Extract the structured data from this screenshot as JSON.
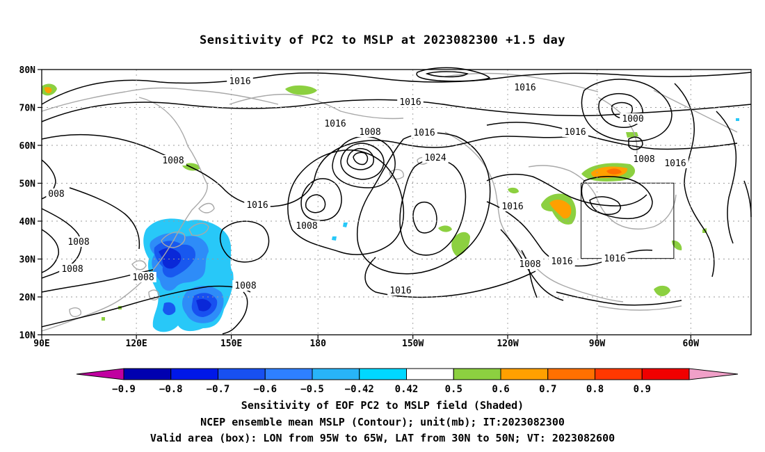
{
  "title": "Sensitivity of PC2 to MSLP at 2023082300 +1.5 day",
  "footer": {
    "line1": "Sensitivity of EOF PC2 to MSLP field (Shaded)",
    "line2": "NCEP ensemble mean MSLP (Contour); unit(mb); IT:2023082300",
    "line3": "Valid area (box): LON from 95W to 65W, LAT from 30N to 50N; VT: 2023082600"
  },
  "map": {
    "lat_labels": [
      "80N",
      "70N",
      "60N",
      "50N",
      "40N",
      "30N",
      "20N",
      "10N"
    ],
    "lon_labels": [
      "90E",
      "120E",
      "150E",
      "180",
      "150W",
      "120W",
      "90W",
      "60W"
    ],
    "contour_labels": [
      "1016",
      "1016",
      "1016",
      "1008",
      "1016",
      "1024",
      "1008",
      "1016",
      "1016",
      "008",
      "1008",
      "1008",
      "1008",
      "1008",
      "1016",
      "1016",
      "1008",
      "1016",
      "1016",
      "1008",
      "1016",
      "1000",
      "1008",
      "1016"
    ],
    "box": {
      "lon": [
        "95W",
        "65W"
      ],
      "lat": [
        "30N",
        "50N"
      ]
    }
  },
  "colorbar": {
    "labels": [
      "-0.9",
      "-0.8",
      "-0.7",
      "-0.6",
      "-0.5",
      "-0.42",
      "0.42",
      "0.5",
      "0.6",
      "0.7",
      "0.8",
      "0.9"
    ],
    "colors": [
      "#c000a0",
      "#0000b0",
      "#0018e8",
      "#1850f0",
      "#2e80ff",
      "#28b4f8",
      "#00d8ff",
      "#ffffff",
      "#8cd040",
      "#ffa000",
      "#ff7000",
      "#ff3800",
      "#f00000",
      "#f0a0c8"
    ]
  }
}
